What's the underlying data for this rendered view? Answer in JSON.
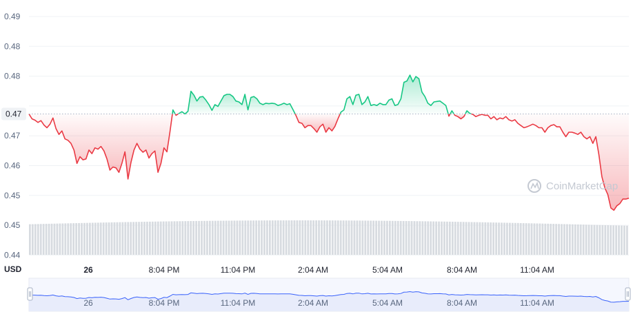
{
  "chart_data": {
    "type": "line",
    "currency_label": "USD",
    "y_ticks": [
      "0.49",
      "0.48",
      "0.48",
      "0.47",
      "0.47",
      "0.46",
      "0.45",
      "0.45",
      "0.44"
    ],
    "x_ticks": [
      "26",
      "8:04 PM",
      "11:04 PM",
      "2:04 AM",
      "5:04 AM",
      "8:04 AM",
      "11:04 AM"
    ],
    "navigator_ticks": [
      "26",
      "8:04 PM",
      "11:04 PM",
      "2:04 AM",
      "5:04 AM",
      "8:04 AM",
      "11:04 AM"
    ],
    "reference_price": 0.4691,
    "reference_label": "0.47",
    "ylim": [
      0.4375,
      0.4925
    ],
    "watermark": "CoinMarketCap",
    "colors": {
      "up": "#16c784",
      "down": "#ea3943",
      "volume": "#d7dbe0",
      "navigator_line": "#3861fb",
      "navigator_fill": "#e8ecfb"
    },
    "series": [
      {
        "values": [
          0.4691,
          0.468,
          0.4677,
          0.4672,
          0.4676,
          0.4666,
          0.466,
          0.4668,
          0.4682,
          0.4658,
          0.4645,
          0.4653,
          0.4635,
          0.4632,
          0.4625,
          0.461,
          0.458,
          0.4595,
          0.4588,
          0.459,
          0.461,
          0.4602,
          0.4615,
          0.4612,
          0.4618,
          0.4608,
          0.459,
          0.4565,
          0.4572,
          0.457,
          0.456,
          0.458,
          0.4606,
          0.4545,
          0.4582,
          0.461,
          0.4625,
          0.4612,
          0.4605,
          0.461,
          0.4592,
          0.4602,
          0.4608,
          0.456,
          0.458,
          0.4615,
          0.4606,
          0.465,
          0.47,
          0.4688,
          0.4692,
          0.4696,
          0.4691,
          0.4697,
          0.4742,
          0.4733,
          0.472,
          0.4729,
          0.473,
          0.4722,
          0.4712,
          0.4699,
          0.4712,
          0.4708,
          0.472,
          0.4732,
          0.4735,
          0.4735,
          0.473,
          0.472,
          0.4718,
          0.4712,
          0.4735,
          0.47,
          0.4728,
          0.473,
          0.4725,
          0.4715,
          0.4712,
          0.4715,
          0.4714,
          0.4715,
          0.4714,
          0.471,
          0.4712,
          0.4715,
          0.4712,
          0.4714,
          0.4701,
          0.4688,
          0.4672,
          0.467,
          0.466,
          0.4665,
          0.4665,
          0.4658,
          0.465,
          0.4662,
          0.4668,
          0.465,
          0.466,
          0.4653,
          0.4663,
          0.468,
          0.4695,
          0.47,
          0.4725,
          0.473,
          0.4712,
          0.4733,
          0.4735,
          0.4712,
          0.4718,
          0.473,
          0.471,
          0.4712,
          0.471,
          0.4715,
          0.4712,
          0.4712,
          0.4722,
          0.4725,
          0.471,
          0.4712,
          0.4725,
          0.4762,
          0.4765,
          0.4778,
          0.4763,
          0.4775,
          0.477,
          0.474,
          0.473,
          0.4715,
          0.471,
          0.4718,
          0.4719,
          0.472,
          0.4715,
          0.471,
          0.4686,
          0.4698,
          0.4688,
          0.4685,
          0.468,
          0.4685,
          0.4698,
          0.4692,
          0.469,
          0.4685,
          0.4688,
          0.469,
          0.4688,
          0.4688,
          0.468,
          0.4685,
          0.4678,
          0.4682,
          0.468,
          0.4685,
          0.4678,
          0.4675,
          0.4678,
          0.467,
          0.4665,
          0.466,
          0.4662,
          0.4665,
          0.4668,
          0.4665,
          0.466,
          0.466,
          0.465,
          0.466,
          0.4665,
          0.4667,
          0.4662,
          0.4662,
          0.465,
          0.464,
          0.465,
          0.465,
          0.4648,
          0.4645,
          0.465,
          0.464,
          0.4635,
          0.464,
          0.4625,
          0.464,
          0.46,
          0.455,
          0.4525,
          0.451,
          0.448,
          0.4475,
          0.4485,
          0.449,
          0.45,
          0.45,
          0.4502
        ]
      }
    ]
  }
}
